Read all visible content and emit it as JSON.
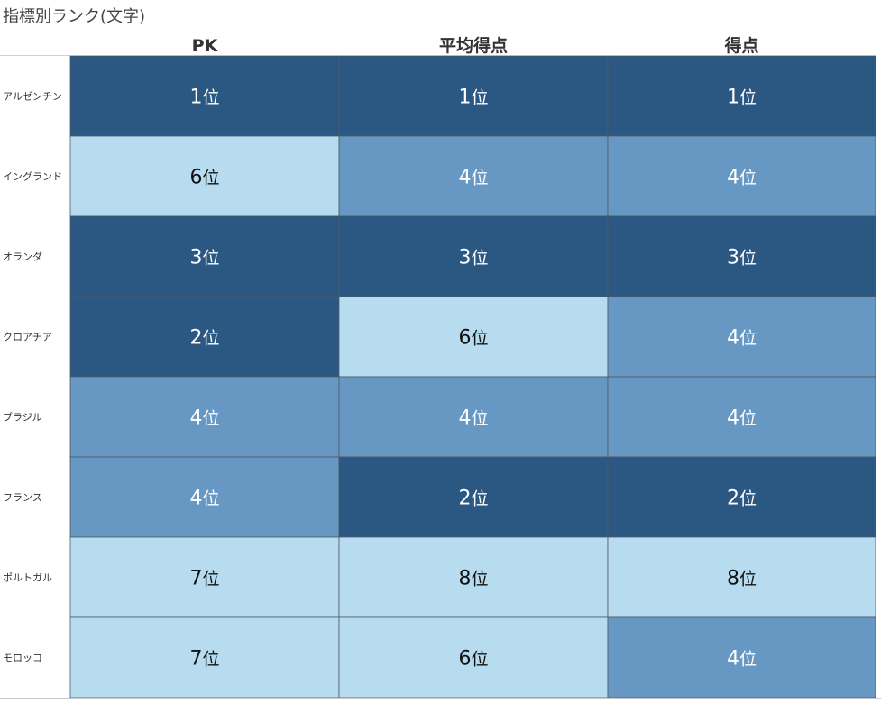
{
  "title": "指標別ランク(文字)",
  "chart_data": {
    "type": "heatmap",
    "title": "指標別ランク(文字)",
    "columns": [
      "PK",
      "平均得点",
      "得点"
    ],
    "rows": [
      "アルゼンチン",
      "イングランド",
      "オランダ",
      "クロアチア",
      "ブラジル",
      "フランス",
      "ポルトガル",
      "モロッコ"
    ],
    "rank_suffix": "位",
    "values": [
      [
        1,
        1,
        1
      ],
      [
        6,
        4,
        4
      ],
      [
        3,
        3,
        3
      ],
      [
        2,
        6,
        4
      ],
      [
        4,
        4,
        4
      ],
      [
        4,
        2,
        2
      ],
      [
        7,
        8,
        8
      ],
      [
        7,
        6,
        4
      ]
    ],
    "color_scale": {
      "dark": "#2b5783",
      "medium": "#6798c3",
      "light": "#b8dcef"
    },
    "text_colors": {
      "on_dark": "#ffffff",
      "on_light": "#111111"
    }
  }
}
